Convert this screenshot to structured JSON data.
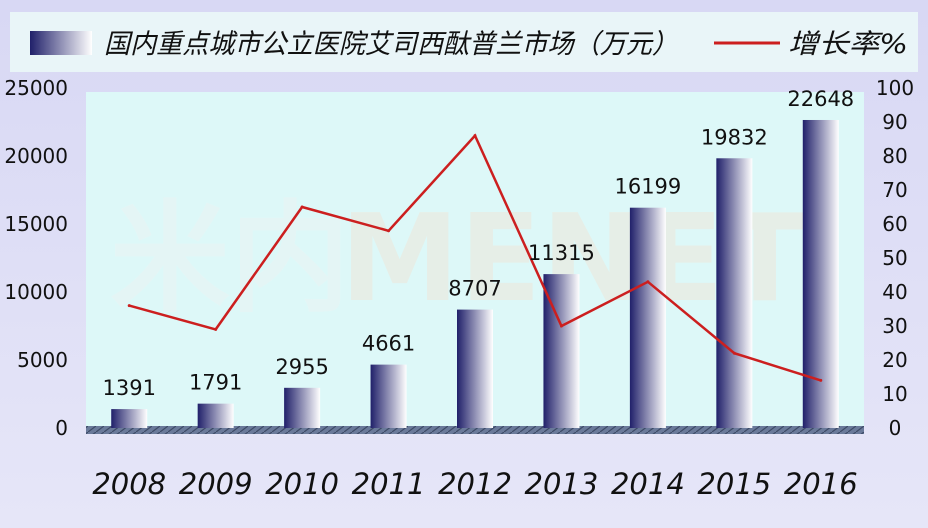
{
  "chart_data": {
    "type": "bar+line",
    "categories": [
      "2008",
      "2009",
      "2010",
      "2011",
      "2012",
      "2013",
      "2014",
      "2015",
      "2016"
    ],
    "series": [
      {
        "name": "国内重点城市公立医院艾司西酞普兰市场（万元）",
        "type": "bar",
        "axis": "left",
        "values": [
          1391,
          1791,
          2955,
          4661,
          8707,
          11315,
          16199,
          19832,
          22648
        ],
        "color_start": "#20206a",
        "color_end": "#ffffff"
      },
      {
        "name": "增长率%",
        "type": "line",
        "axis": "right",
        "values": [
          36,
          29,
          65,
          58,
          86,
          30,
          43,
          22,
          14
        ],
        "color": "#cc1f1f"
      }
    ],
    "y_left": {
      "ylim": [
        0,
        25000
      ],
      "ticks": [
        "0",
        "5000",
        "10000",
        "15000",
        "20000",
        "25000"
      ]
    },
    "y_right": {
      "ylim": [
        0,
        100
      ],
      "ticks": [
        "0",
        "10",
        "20",
        "30",
        "40",
        "50",
        "60",
        "70",
        "80",
        "90",
        "100"
      ]
    },
    "data_labels": [
      "1391",
      "1791",
      "2955",
      "4661",
      "8707",
      "11315",
      "16199",
      "19832",
      "22648"
    ],
    "legend_position": "top",
    "grid": false,
    "plot_background": "#ddf8f8",
    "watermark": "米内MENET"
  }
}
